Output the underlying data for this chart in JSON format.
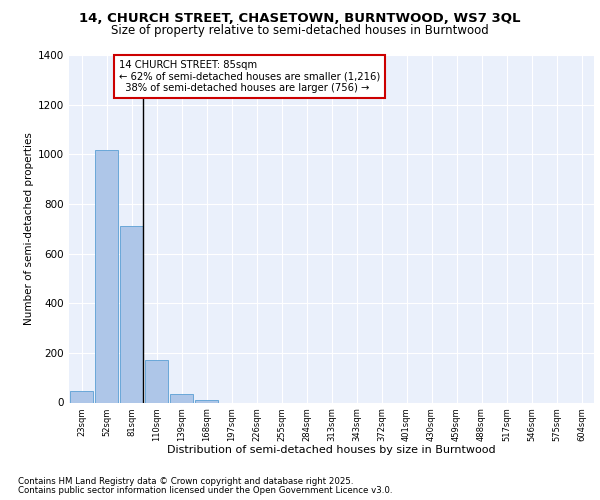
{
  "title_line1": "14, CHURCH STREET, CHASETOWN, BURNTWOOD, WS7 3QL",
  "title_line2": "Size of property relative to semi-detached houses in Burntwood",
  "xlabel": "Distribution of semi-detached houses by size in Burntwood",
  "ylabel": "Number of semi-detached properties",
  "categories": [
    "23sqm",
    "52sqm",
    "81sqm",
    "110sqm",
    "139sqm",
    "168sqm",
    "197sqm",
    "226sqm",
    "255sqm",
    "284sqm",
    "313sqm",
    "343sqm",
    "372sqm",
    "401sqm",
    "430sqm",
    "459sqm",
    "488sqm",
    "517sqm",
    "546sqm",
    "575sqm",
    "604sqm"
  ],
  "values": [
    47,
    1018,
    710,
    171,
    35,
    10,
    0,
    0,
    0,
    0,
    0,
    0,
    0,
    0,
    0,
    0,
    0,
    0,
    0,
    0,
    0
  ],
  "bar_color": "#aec6e8",
  "bar_edge_color": "#5a9fd4",
  "vline_color": "#000000",
  "annotation_text": "14 CHURCH STREET: 85sqm\n← 62% of semi-detached houses are smaller (1,216)\n  38% of semi-detached houses are larger (756) →",
  "annotation_box_color": "#ffffff",
  "annotation_box_edge_color": "#cc0000",
  "ylim": [
    0,
    1400
  ],
  "yticks": [
    0,
    200,
    400,
    600,
    800,
    1000,
    1200,
    1400
  ],
  "background_color": "#eaf0fb",
  "grid_color": "#ffffff",
  "footer_line1": "Contains HM Land Registry data © Crown copyright and database right 2025.",
  "footer_line2": "Contains public sector information licensed under the Open Government Licence v3.0."
}
